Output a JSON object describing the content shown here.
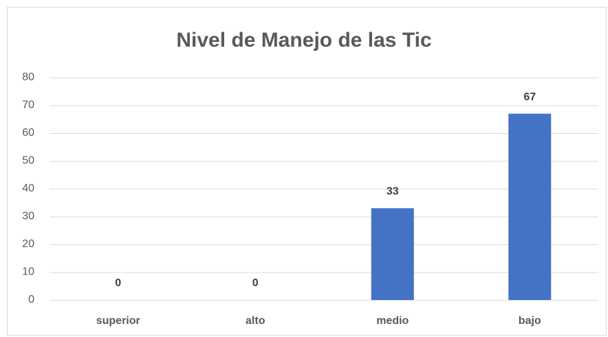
{
  "chart_data": {
    "type": "bar",
    "title": "Nivel de Manejo de las Tic",
    "categories": [
      "superior",
      "alto",
      "medio",
      "bajo"
    ],
    "values": [
      0,
      0,
      33,
      67
    ],
    "color": "#4472c4",
    "ylim": [
      0,
      80
    ],
    "yticks": [
      0,
      10,
      20,
      30,
      40,
      50,
      60,
      70,
      80
    ],
    "grid": true,
    "data_labels": true
  }
}
